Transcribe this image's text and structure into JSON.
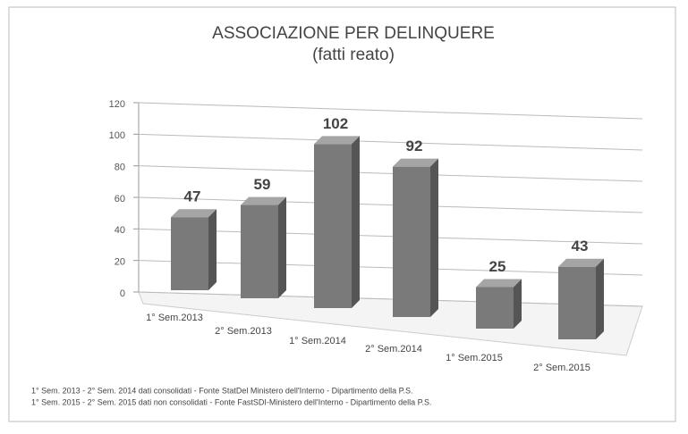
{
  "chart_data": {
    "type": "bar3d",
    "title": "ASSOCIAZIONE PER DELINQUERE",
    "subtitle": "(fatti reato)",
    "categories": [
      "1° Sem.2013",
      "2° Sem.2013",
      "1° Sem.2014",
      "2° Sem.2014",
      "1° Sem.2015",
      "2° Sem.2015"
    ],
    "values": [
      47,
      59,
      102,
      92,
      25,
      43
    ],
    "color": "#7a7a7a",
    "ylim": [
      0,
      120
    ],
    "yticks": [
      0,
      20,
      40,
      60,
      80,
      100,
      120
    ],
    "grid": true,
    "notes": [
      "1° Sem. 2013 - 2° Sem. 2014 dati consolidati - Fonte StatDel Ministero dell'Interno - Dipartimento della P.S.",
      "1° Sem. 2015 - 2° Sem. 2015 dati non consolidati - Fonte FastSDI-Ministero dell'Interno - Dipartimento della P.S."
    ]
  }
}
